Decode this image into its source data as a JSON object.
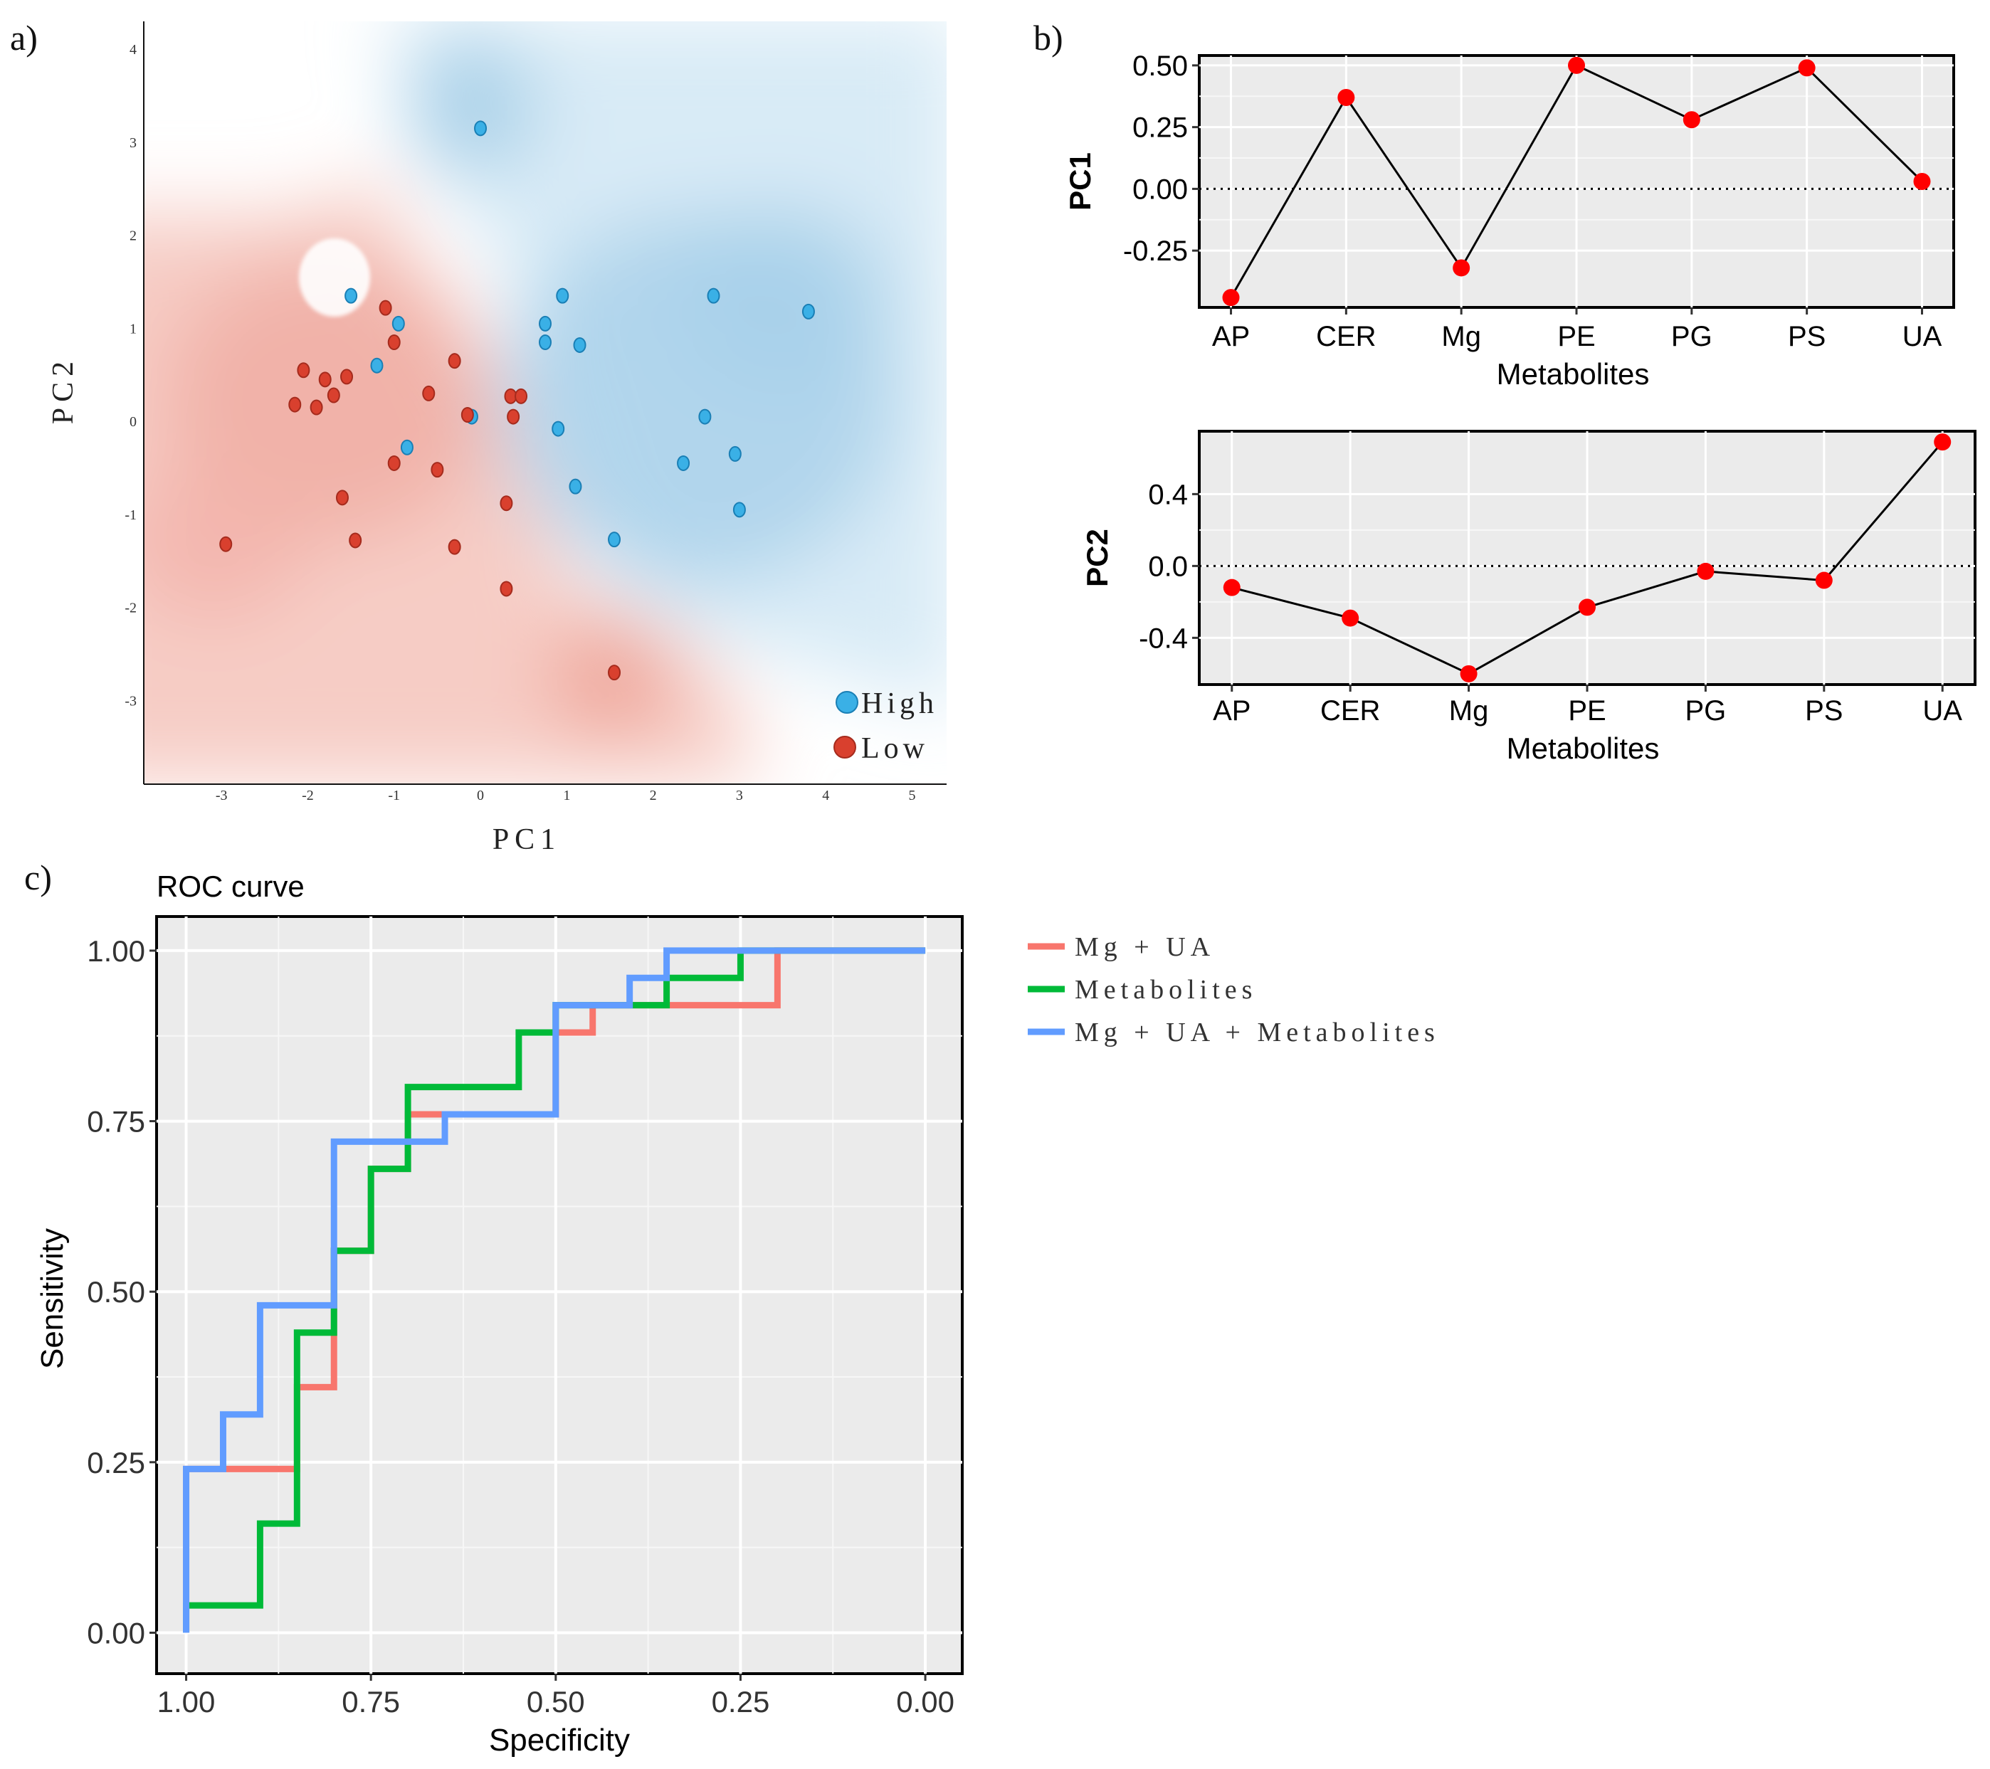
{
  "panel_labels": [
    "a)",
    "b)",
    "c)"
  ],
  "colors": {
    "high": "#3ab0e6",
    "low": "#d9402e",
    "mg_ua": "#f8766d",
    "metabolites": "#00ba38",
    "combined": "#619cff",
    "point_b": "#ff0000",
    "panel_bg": "#ebebeb"
  },
  "chart_data": [
    {
      "id": "a",
      "type": "scatter",
      "xlabel": "PC1",
      "ylabel": "PC2",
      "xlim": [
        -3.9,
        5.4
      ],
      "ylim": [
        -3.9,
        4.3
      ],
      "xticks": [
        -3,
        -2,
        -1,
        0,
        1,
        2,
        3,
        4,
        5
      ],
      "yticks": [
        -3,
        -2,
        -1,
        0,
        1,
        2,
        3,
        4
      ],
      "legend_position": "bottom-right",
      "series": [
        {
          "name": "High",
          "points": [
            [
              0.0,
              3.15
            ],
            [
              -1.5,
              1.35
            ],
            [
              -0.95,
              1.05
            ],
            [
              -1.2,
              0.6
            ],
            [
              0.95,
              1.35
            ],
            [
              0.75,
              1.05
            ],
            [
              0.75,
              0.85
            ],
            [
              1.15,
              0.82
            ],
            [
              2.7,
              1.35
            ],
            [
              3.8,
              1.18
            ],
            [
              -0.1,
              0.05
            ],
            [
              0.9,
              -0.08
            ],
            [
              2.6,
              0.05
            ],
            [
              -0.85,
              -0.28
            ],
            [
              1.1,
              -0.7
            ],
            [
              2.35,
              -0.45
            ],
            [
              2.95,
              -0.35
            ],
            [
              3.0,
              -0.95
            ],
            [
              1.55,
              -1.27
            ]
          ]
        },
        {
          "name": "Low",
          "points": [
            [
              -1.1,
              1.22
            ],
            [
              -1.0,
              0.85
            ],
            [
              -2.05,
              0.55
            ],
            [
              -1.8,
              0.45
            ],
            [
              -1.55,
              0.48
            ],
            [
              -1.7,
              0.28
            ],
            [
              -2.15,
              0.18
            ],
            [
              -1.9,
              0.15
            ],
            [
              -0.6,
              0.3
            ],
            [
              -0.3,
              0.65
            ],
            [
              0.35,
              0.27
            ],
            [
              0.47,
              0.27
            ],
            [
              0.38,
              0.05
            ],
            [
              -0.15,
              0.07
            ],
            [
              -1.0,
              -0.45
            ],
            [
              -0.5,
              -0.52
            ],
            [
              -1.6,
              -0.82
            ],
            [
              0.3,
              -0.88
            ],
            [
              -1.45,
              -1.28
            ],
            [
              -0.3,
              -1.35
            ],
            [
              0.3,
              -1.8
            ],
            [
              -2.95,
              -1.32
            ],
            [
              1.55,
              -2.7
            ]
          ]
        }
      ]
    },
    {
      "id": "b1",
      "type": "line",
      "xlabel": "Metabolites",
      "ylabel": "PC1",
      "categories": [
        "AP",
        "CER",
        "Mg",
        "PE",
        "PG",
        "PS",
        "UA"
      ],
      "values": [
        -0.44,
        0.37,
        -0.32,
        0.5,
        0.28,
        0.49,
        0.03
      ],
      "yticks": [
        -0.25,
        0.0,
        0.25,
        0.5
      ],
      "ytick_labels": [
        "-0.25",
        "0.00",
        "0.25",
        "0.50"
      ],
      "ylim": [
        -0.48,
        0.54
      ],
      "reference_line": 0
    },
    {
      "id": "b2",
      "type": "line",
      "xlabel": "Metabolites",
      "ylabel": "PC2",
      "categories": [
        "AP",
        "CER",
        "Mg",
        "PE",
        "PG",
        "PS",
        "UA"
      ],
      "values": [
        -0.12,
        -0.29,
        -0.6,
        -0.23,
        -0.03,
        -0.08,
        0.69
      ],
      "yticks": [
        -0.4,
        0.0,
        0.4
      ],
      "ytick_labels": [
        "-0.4",
        "0.0",
        "0.4"
      ],
      "ylim": [
        -0.66,
        0.75
      ],
      "reference_line": 0
    },
    {
      "id": "c",
      "type": "line",
      "title": "ROC curve",
      "xlabel": "Specificity",
      "ylabel": "Sensitivity",
      "xlim": [
        1.04,
        -0.05
      ],
      "ylim": [
        -0.06,
        1.05
      ],
      "xticks": [
        1.0,
        0.75,
        0.5,
        0.25,
        0.0
      ],
      "xtick_labels": [
        "1.00",
        "0.75",
        "0.50",
        "0.25",
        "0.00"
      ],
      "yticks": [
        0.0,
        0.25,
        0.5,
        0.75,
        1.0
      ],
      "ytick_labels": [
        "0.00",
        "0.25",
        "0.50",
        "0.75",
        "1.00"
      ],
      "legend_position": "right",
      "series": [
        {
          "name": "Mg + UA",
          "points": [
            [
              1.0,
              0.0
            ],
            [
              1.0,
              0.24
            ],
            [
              0.85,
              0.24
            ],
            [
              0.85,
              0.36
            ],
            [
              0.8,
              0.36
            ],
            [
              0.8,
              0.56
            ],
            [
              0.75,
              0.56
            ],
            [
              0.75,
              0.68
            ],
            [
              0.7,
              0.68
            ],
            [
              0.7,
              0.76
            ],
            [
              0.65,
              0.76
            ],
            [
              0.5,
              0.76
            ],
            [
              0.5,
              0.88
            ],
            [
              0.45,
              0.88
            ],
            [
              0.45,
              0.92
            ],
            [
              0.4,
              0.92
            ],
            [
              0.2,
              0.92
            ],
            [
              0.2,
              1.0
            ],
            [
              0.0,
              1.0
            ]
          ]
        },
        {
          "name": "Metabolites",
          "points": [
            [
              1.0,
              0.0
            ],
            [
              1.0,
              0.04
            ],
            [
              0.9,
              0.04
            ],
            [
              0.9,
              0.16
            ],
            [
              0.85,
              0.16
            ],
            [
              0.85,
              0.44
            ],
            [
              0.8,
              0.44
            ],
            [
              0.8,
              0.56
            ],
            [
              0.75,
              0.56
            ],
            [
              0.75,
              0.68
            ],
            [
              0.7,
              0.68
            ],
            [
              0.7,
              0.8
            ],
            [
              0.55,
              0.8
            ],
            [
              0.55,
              0.88
            ],
            [
              0.5,
              0.88
            ],
            [
              0.5,
              0.92
            ],
            [
              0.35,
              0.92
            ],
            [
              0.35,
              0.96
            ],
            [
              0.25,
              0.96
            ],
            [
              0.25,
              1.0
            ],
            [
              0.0,
              1.0
            ]
          ]
        },
        {
          "name": "Mg + UA + Metabolites",
          "points": [
            [
              1.0,
              0.0
            ],
            [
              1.0,
              0.24
            ],
            [
              0.95,
              0.24
            ],
            [
              0.95,
              0.32
            ],
            [
              0.9,
              0.32
            ],
            [
              0.9,
              0.48
            ],
            [
              0.8,
              0.48
            ],
            [
              0.8,
              0.72
            ],
            [
              0.7,
              0.72
            ],
            [
              0.65,
              0.72
            ],
            [
              0.65,
              0.76
            ],
            [
              0.5,
              0.76
            ],
            [
              0.5,
              0.92
            ],
            [
              0.4,
              0.92
            ],
            [
              0.4,
              0.96
            ],
            [
              0.35,
              0.96
            ],
            [
              0.35,
              1.0
            ],
            [
              0.0,
              1.0
            ]
          ]
        }
      ]
    }
  ]
}
